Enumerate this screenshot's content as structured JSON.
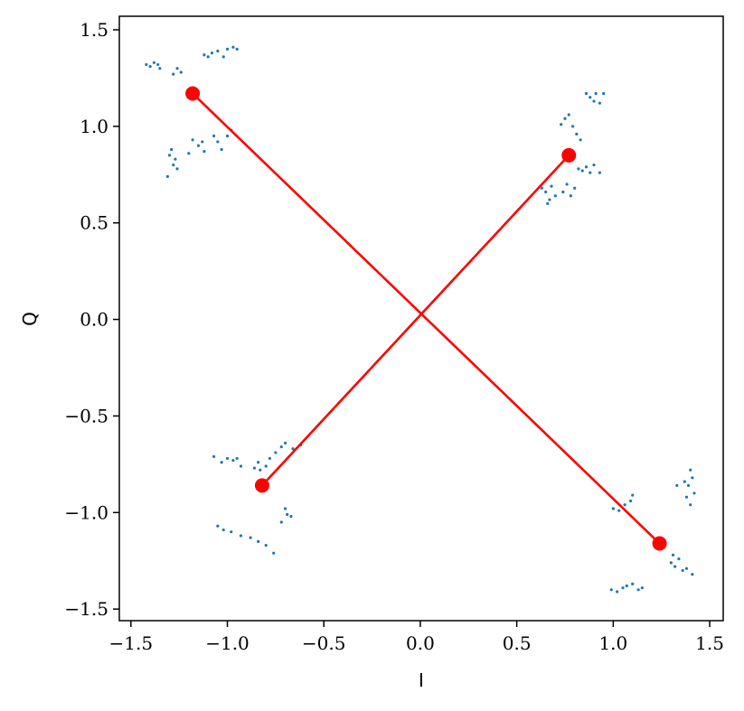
{
  "chart_data": {
    "type": "scatter",
    "title": "",
    "xlabel": "I",
    "ylabel": "Q",
    "xlim": [
      -1.56,
      1.57
    ],
    "ylim": [
      -1.56,
      1.57
    ],
    "xticks": [
      -1.5,
      -1.0,
      -0.5,
      0.0,
      0.5,
      1.0,
      1.5
    ],
    "xtick_labels": [
      "−1.5",
      "−1.0",
      "−0.5",
      "0.0",
      "0.5",
      "1.0",
      "1.5"
    ],
    "yticks": [
      -1.5,
      -1.0,
      -0.5,
      0.0,
      0.5,
      1.0,
      1.5
    ],
    "ytick_labels": [
      "−1.5",
      "−1.0",
      "−0.5",
      "0.0",
      "0.5",
      "1.0",
      "1.5"
    ],
    "grid": false,
    "legend": "none",
    "colors": {
      "scatter": "#1f77b4",
      "lines": "#ff0000",
      "markers": "#ff0000"
    },
    "scatter_clusters": [
      {
        "center": [
          -1.18,
          1.17
        ],
        "points": [
          [
            -1.4,
            1.31
          ],
          [
            -1.38,
            1.33
          ],
          [
            -1.35,
            1.3
          ],
          [
            -1.42,
            1.32
          ],
          [
            -1.36,
            1.32
          ],
          [
            -1.28,
            1.27
          ],
          [
            -1.26,
            1.3
          ],
          [
            -1.24,
            1.28
          ],
          [
            -1.12,
            1.37
          ],
          [
            -1.08,
            1.38
          ],
          [
            -1.05,
            1.39
          ],
          [
            -1.0,
            1.4
          ],
          [
            -0.97,
            1.41
          ],
          [
            -0.95,
            1.4
          ],
          [
            -1.02,
            1.36
          ],
          [
            -1.1,
            1.36
          ],
          [
            -1.3,
            0.85
          ],
          [
            -1.28,
            0.8
          ],
          [
            -1.31,
            0.74
          ],
          [
            -1.26,
            0.78
          ],
          [
            -1.29,
            0.88
          ],
          [
            -1.27,
            0.83
          ],
          [
            -1.15,
            0.9
          ],
          [
            -1.13,
            0.92
          ],
          [
            -1.12,
            0.87
          ],
          [
            -1.2,
            0.86
          ],
          [
            -1.05,
            0.92
          ],
          [
            -1.03,
            0.88
          ],
          [
            -1.0,
            0.95
          ],
          [
            -0.98,
            0.98
          ],
          [
            -1.07,
            0.95
          ],
          [
            -1.18,
            0.93
          ]
        ]
      },
      {
        "center": [
          0.77,
          0.85
        ],
        "points": [
          [
            0.65,
            0.66
          ],
          [
            0.67,
            0.62
          ],
          [
            0.63,
            0.68
          ],
          [
            0.7,
            0.64
          ],
          [
            0.66,
            0.6
          ],
          [
            0.68,
            0.69
          ],
          [
            0.74,
            0.66
          ],
          [
            0.76,
            0.7
          ],
          [
            0.78,
            0.64
          ],
          [
            0.8,
            0.68
          ],
          [
            0.84,
            0.77
          ],
          [
            0.86,
            0.79
          ],
          [
            0.88,
            0.76
          ],
          [
            0.9,
            0.8
          ],
          [
            0.93,
            0.76
          ],
          [
            0.82,
            0.78
          ],
          [
            0.75,
            1.04
          ],
          [
            0.77,
            1.06
          ],
          [
            0.73,
            1.01
          ],
          [
            0.79,
            1.0
          ],
          [
            0.81,
            0.96
          ],
          [
            0.83,
            0.93
          ],
          [
            0.86,
            1.17
          ],
          [
            0.88,
            1.15
          ],
          [
            0.91,
            1.17
          ],
          [
            0.93,
            1.12
          ],
          [
            0.95,
            1.17
          ],
          [
            0.9,
            1.13
          ]
        ]
      },
      {
        "center": [
          -0.82,
          -0.86
        ],
        "points": [
          [
            -1.07,
            -0.71
          ],
          [
            -1.03,
            -0.74
          ],
          [
            -1.0,
            -0.72
          ],
          [
            -0.97,
            -0.73
          ],
          [
            -0.93,
            -0.76
          ],
          [
            -0.95,
            -0.72
          ],
          [
            -0.86,
            -0.77
          ],
          [
            -0.83,
            -0.78
          ],
          [
            -0.8,
            -0.76
          ],
          [
            -0.84,
            -0.74
          ],
          [
            -0.78,
            -0.72
          ],
          [
            -0.75,
            -0.69
          ],
          [
            -0.72,
            -0.66
          ],
          [
            -0.7,
            -0.64
          ],
          [
            -0.66,
            -0.67
          ],
          [
            -0.62,
            -0.65
          ],
          [
            -1.05,
            -1.07
          ],
          [
            -1.02,
            -1.09
          ],
          [
            -0.98,
            -1.1
          ],
          [
            -0.93,
            -1.12
          ],
          [
            -0.88,
            -1.13
          ],
          [
            -0.84,
            -1.15
          ],
          [
            -0.8,
            -1.17
          ],
          [
            -0.76,
            -1.21
          ],
          [
            -0.7,
            -0.98
          ],
          [
            -0.69,
            -1.01
          ],
          [
            -0.67,
            -1.02
          ],
          [
            -0.72,
            -1.05
          ]
        ]
      },
      {
        "center": [
          1.24,
          -1.16
        ],
        "points": [
          [
            1.4,
            -0.78
          ],
          [
            1.41,
            -0.82
          ],
          [
            1.39,
            -0.86
          ],
          [
            1.42,
            -0.9
          ],
          [
            1.38,
            -0.92
          ],
          [
            1.4,
            -0.96
          ],
          [
            1.37,
            -0.84
          ],
          [
            1.33,
            -0.86
          ],
          [
            1.3,
            -1.26
          ],
          [
            1.32,
            -1.28
          ],
          [
            1.34,
            -1.24
          ],
          [
            1.36,
            -1.3
          ],
          [
            1.38,
            -1.29
          ],
          [
            1.41,
            -1.32
          ],
          [
            1.31,
            -1.22
          ],
          [
            0.99,
            -1.4
          ],
          [
            1.02,
            -1.41
          ],
          [
            1.05,
            -1.39
          ],
          [
            1.07,
            -1.38
          ],
          [
            1.1,
            -1.37
          ],
          [
            1.13,
            -1.4
          ],
          [
            1.15,
            -1.39
          ],
          [
            1.03,
            -0.99
          ],
          [
            1.06,
            -0.96
          ],
          [
            1.09,
            -0.94
          ],
          [
            1.1,
            -0.91
          ],
          [
            1.0,
            -0.98
          ]
        ]
      }
    ],
    "series": [
      {
        "points": [
          [
            -1.18,
            1.17
          ],
          [
            1.24,
            -1.16
          ]
        ]
      },
      {
        "points": [
          [
            0.77,
            0.85
          ],
          [
            -0.82,
            -0.86
          ]
        ]
      }
    ]
  }
}
